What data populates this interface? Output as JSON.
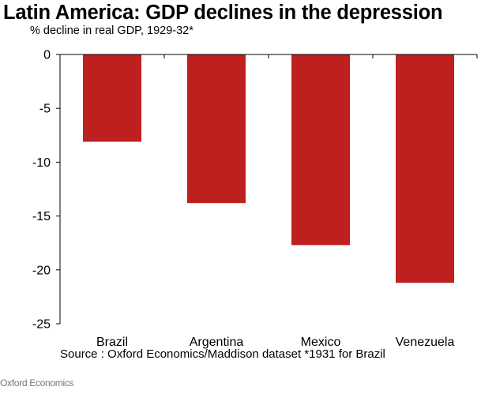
{
  "chart_data": {
    "type": "bar",
    "title": "Latin America: GDP declines in the depression",
    "subtitle": "% decline in real GDP, 1929-32*",
    "categories": [
      "Brazil",
      "Argentina",
      "Mexico",
      "Venezuela"
    ],
    "values": [
      -8.1,
      -13.8,
      -17.7,
      -21.2
    ],
    "ylim": [
      -25,
      0
    ],
    "yticks": [
      0,
      -5,
      -10,
      -15,
      -20,
      -25
    ],
    "ytick_labels": [
      "0",
      "-5",
      "-10",
      "-15",
      "-20",
      "-25"
    ],
    "xlabel": "",
    "ylabel": "",
    "grid": false,
    "legend": "none",
    "bar_color": "#be2020"
  },
  "source": "Source : Oxford Economics/Maddison dataset  *1931 for Brazil",
  "footer": "Oxford Economics"
}
